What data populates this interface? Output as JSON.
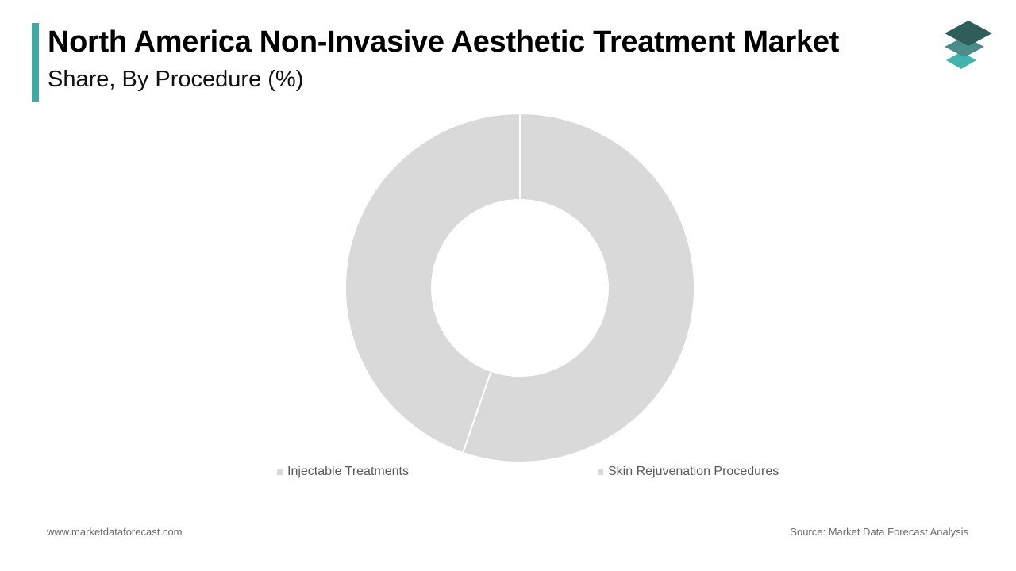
{
  "header": {
    "title": "North America Non-Invasive Aesthetic Treatment Market",
    "subtitle": "Share, By Procedure (%)"
  },
  "colors": {
    "accent": "#3fa9a4",
    "slice_fill": "#d9d9d9",
    "slice_border": "#ffffff",
    "logo_top": "#2f5e5a",
    "logo_middle": "#4a8c87",
    "logo_bottom": "#3fb5ad"
  },
  "logo": {
    "icon": "stacked-layers-icon"
  },
  "chart_data": {
    "type": "pie",
    "donut": true,
    "title": "North America Non-Invasive Aesthetic Treatment Market",
    "subtitle": "Share, By Procedure (%)",
    "categories": [
      "Injectable Treatments",
      "Skin Rejuvenation Procedures"
    ],
    "values": [
      55.3,
      44.7
    ],
    "legend_position": "bottom",
    "data_labels": false
  },
  "footer": {
    "website": "www.marketdataforecast.com",
    "source": "Source: Market Data Forecast Analysis"
  }
}
